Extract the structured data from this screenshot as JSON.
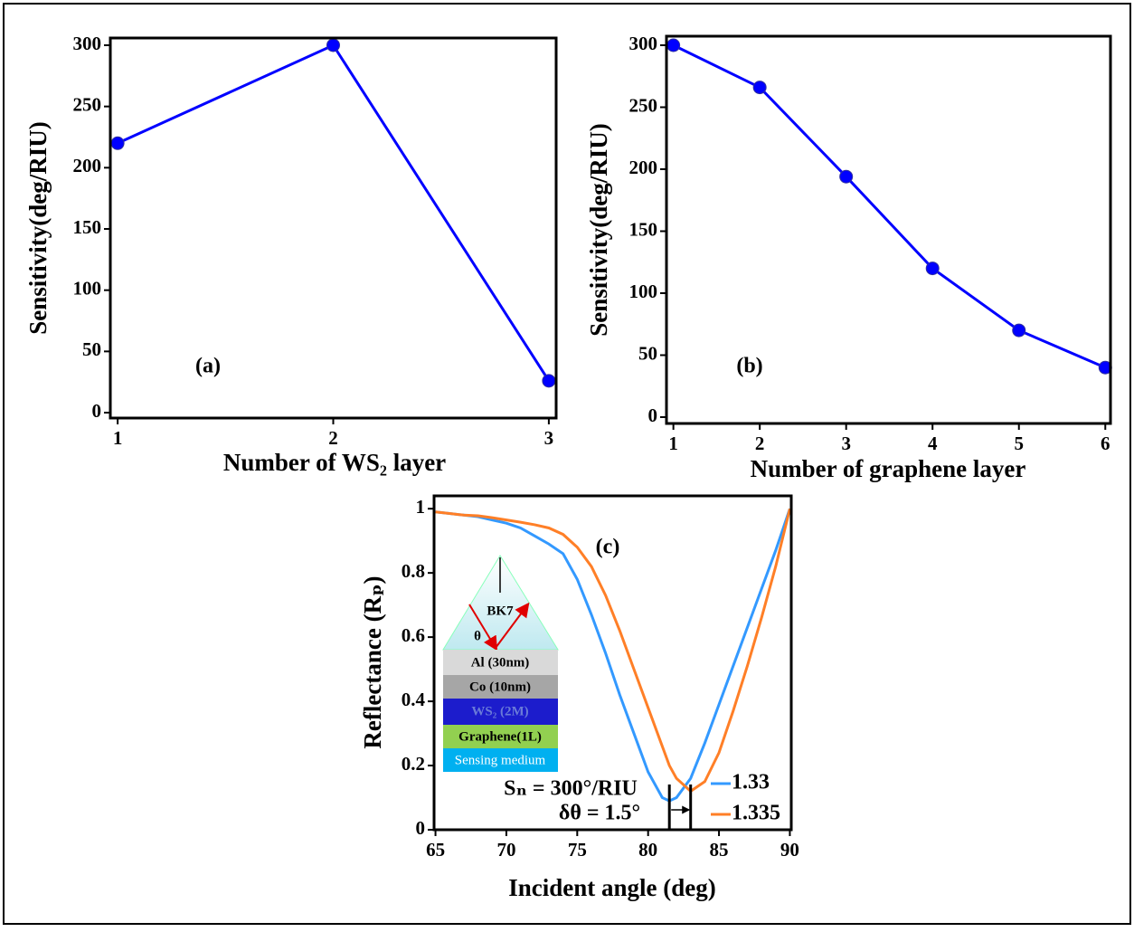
{
  "chart_data": [
    {
      "type": "line",
      "x": [
        1,
        2,
        3
      ],
      "values": [
        220,
        300,
        26
      ],
      "color": "#0000ff",
      "markers": true,
      "xlim": [
        0.966,
        3.034
      ],
      "ylim": [
        -4.4,
        305.9
      ],
      "xticks": [
        1,
        2,
        3
      ],
      "yticks": [
        0,
        50,
        100,
        150,
        200,
        250,
        300
      ],
      "xlabel": "Number of WS₂ layer",
      "ylabel": "Sensitivity(deg/RIU)",
      "annotations": [
        "(a)"
      ]
    },
    {
      "type": "line",
      "x": [
        1,
        2,
        3,
        4,
        5,
        6
      ],
      "values": [
        300,
        266,
        194,
        120,
        70,
        40
      ],
      "color": "#0000ff",
      "markers": true,
      "xlim": [
        0.92,
        6.06
      ],
      "ylim": [
        -5.1,
        307.3
      ],
      "xticks": [
        1,
        2,
        3,
        4,
        5,
        6
      ],
      "yticks": [
        0,
        50,
        100,
        150,
        200,
        250,
        300
      ],
      "xlabel": "Number of graphene layer",
      "ylabel": "Sensitivity(deg/RIU)",
      "annotations": [
        "(b)"
      ]
    },
    {
      "type": "line",
      "markers": false,
      "x": [
        65,
        66,
        67,
        68,
        69,
        70,
        71,
        72,
        73,
        74,
        75,
        76,
        77,
        78,
        79,
        80,
        81,
        81.5,
        82,
        83,
        84,
        85,
        86,
        87,
        88,
        89,
        90
      ],
      "series": [
        {
          "name": "1.33",
          "color": "#3399ff",
          "values": [
            0.99,
            0.985,
            0.98,
            0.975,
            0.965,
            0.955,
            0.94,
            0.915,
            0.89,
            0.86,
            0.78,
            0.67,
            0.55,
            0.42,
            0.3,
            0.18,
            0.1,
            0.09,
            0.1,
            0.16,
            0.27,
            0.39,
            0.51,
            0.63,
            0.75,
            0.87,
            1.0
          ]
        },
        {
          "name": "1.335",
          "color": "#ff7f27",
          "values": [
            0.99,
            0.985,
            0.98,
            0.978,
            0.972,
            0.965,
            0.958,
            0.95,
            0.94,
            0.92,
            0.88,
            0.82,
            0.73,
            0.62,
            0.5,
            0.38,
            0.26,
            0.2,
            0.16,
            0.12,
            0.15,
            0.24,
            0.37,
            0.51,
            0.66,
            0.82,
            1.0
          ]
        }
      ],
      "xlim": [
        64.9,
        90.1
      ],
      "ylim": [
        0,
        1.04
      ],
      "xticks": [
        65,
        70,
        75,
        80,
        85,
        90
      ],
      "yticks": [
        0,
        0.2,
        0.4,
        0.6,
        0.8,
        1
      ],
      "xlabel": "Incident angle (deg)",
      "ylabel": "Reflectance (Rₚ)",
      "annotations": [
        "(c)",
        "Sₙ = 300°/RIU",
        "δθ = 1.5°"
      ],
      "inset": {
        "prism": "BK7",
        "angle": "θ",
        "layers": [
          "Al (30nm)",
          "Co (10nm)",
          "WS₂ (2M)",
          "Graphene(1L)",
          "Sensing medium"
        ]
      }
    }
  ]
}
